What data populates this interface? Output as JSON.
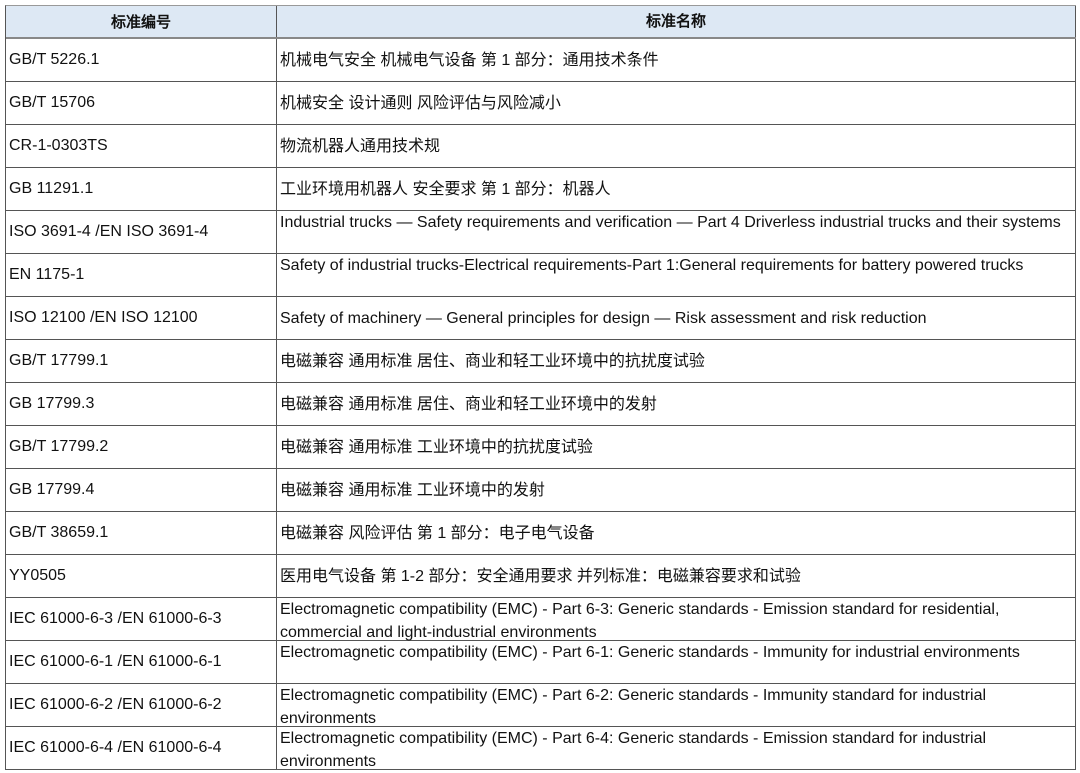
{
  "table": {
    "headers": [
      "标准编号",
      "标准名称"
    ],
    "rows": [
      {
        "code": "GB/T 5226.1",
        "name": "机械电气安全 机械电气设备 第 1 部分：通用技术条件"
      },
      {
        "code": "GB/T 15706",
        "name": "机械安全 设计通则 风险评估与风险减小"
      },
      {
        "code": "CR-1-0303TS",
        "name": "物流机器人通用技术规"
      },
      {
        "code": "GB 11291.1",
        "name": "工业环境用机器人 安全要求 第 1 部分：机器人"
      },
      {
        "code": "ISO 3691-4 /EN ISO 3691-4",
        "name": "Industrial trucks — Safety requirements and verification — Part 4 Driverless industrial trucks and their systems"
      },
      {
        "code": "EN 1175-1",
        "name": "Safety of industrial trucks-Electrical requirements-Part 1:General requirements for battery powered trucks"
      },
      {
        "code": "ISO 12100 /EN ISO 12100",
        "name": "Safety of machinery — General principles for design — Risk assessment and risk reduction"
      },
      {
        "code": "GB/T 17799.1",
        "name": "电磁兼容 通用标准 居住、商业和轻工业环境中的抗扰度试验"
      },
      {
        "code": "GB 17799.3",
        "name": "电磁兼容 通用标准 居住、商业和轻工业环境中的发射"
      },
      {
        "code": "GB/T 17799.2",
        "name": "电磁兼容 通用标准 工业环境中的抗扰度试验"
      },
      {
        "code": "GB 17799.4",
        "name": "电磁兼容 通用标准 工业环境中的发射"
      },
      {
        "code": "GB/T 38659.1",
        "name": "电磁兼容 风险评估 第 1 部分：电子电气设备"
      },
      {
        "code": "YY0505",
        "name": "医用电气设备 第 1-2 部分：安全通用要求 并列标准：电磁兼容要求和试验"
      },
      {
        "code": "IEC 61000-6-3 /EN 61000-6-3",
        "name": "Electromagnetic compatibility (EMC) - Part 6-3: Generic standards - Emission standard for residential, commercial and light-industrial environments"
      },
      {
        "code": "IEC 61000-6-1 /EN 61000-6-1",
        "name": "Electromagnetic compatibility (EMC) - Part 6-1: Generic standards - Immunity for industrial environments"
      },
      {
        "code": "IEC 61000-6-2 /EN 61000-6-2",
        "name": "Electromagnetic compatibility (EMC) - Part 6-2: Generic standards - Immunity standard for industrial environments"
      },
      {
        "code": "IEC 61000-6-4 /EN 61000-6-4",
        "name": "Electromagnetic compatibility (EMC) - Part 6-4: Generic standards - Emission standard for industrial environments"
      }
    ]
  }
}
